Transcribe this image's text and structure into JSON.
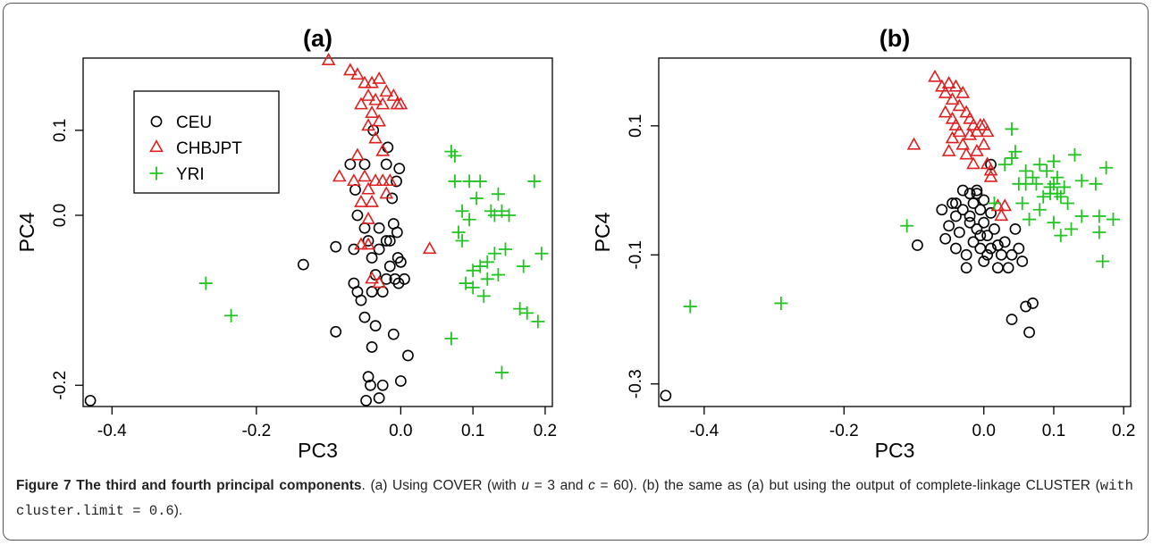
{
  "chart_data": [
    {
      "type": "scatter",
      "title": "(a)",
      "xlabel": "PC3",
      "ylabel": "PC4",
      "xlim": [
        -0.44,
        0.21
      ],
      "ylim": [
        -0.225,
        0.185
      ],
      "xticks": [
        -0.4,
        -0.2,
        0.0,
        0.1,
        0.2
      ],
      "xtick_labels": [
        "-0.4",
        "-0.2",
        "0.0",
        "0.1",
        "0.2"
      ],
      "yticks": [
        -0.2,
        0.0,
        0.1
      ],
      "ytick_labels": [
        "-0.2",
        "0.0",
        "0.1"
      ],
      "legend": {
        "position": "top-left",
        "entries": [
          {
            "label": "CEU",
            "marker": "circle",
            "color": "#000000"
          },
          {
            "label": "CHBJPT",
            "marker": "triangle",
            "color": "#DF2020"
          },
          {
            "label": "YRI",
            "marker": "plus",
            "color": "#22C322"
          }
        ]
      },
      "series": [
        {
          "name": "CEU",
          "marker": "circle",
          "color": "#000000",
          "points": [
            [
              -0.43,
              -0.218
            ],
            [
              -0.135,
              -0.058
            ],
            [
              -0.09,
              -0.037
            ],
            [
              -0.09,
              -0.137
            ],
            [
              -0.07,
              0.06
            ],
            [
              -0.065,
              -0.08
            ],
            [
              -0.063,
              0.03
            ],
            [
              -0.06,
              -0.09
            ],
            [
              -0.055,
              -0.1
            ],
            [
              -0.05,
              -0.12
            ],
            [
              -0.048,
              -0.218
            ],
            [
              -0.05,
              0.06
            ],
            [
              -0.045,
              -0.03
            ],
            [
              -0.045,
              -0.19
            ],
            [
              -0.042,
              -0.2
            ],
            [
              -0.04,
              -0.05
            ],
            [
              -0.04,
              -0.09
            ],
            [
              -0.038,
              0.1
            ],
            [
              -0.035,
              -0.07
            ],
            [
              -0.035,
              -0.13
            ],
            [
              -0.03,
              -0.04
            ],
            [
              -0.03,
              -0.215
            ],
            [
              -0.025,
              -0.2
            ],
            [
              -0.025,
              -0.09
            ],
            [
              -0.02,
              0.06
            ],
            [
              -0.02,
              -0.03
            ],
            [
              -0.018,
              0.08
            ],
            [
              -0.015,
              -0.06
            ],
            [
              -0.012,
              0.02
            ],
            [
              -0.01,
              -0.01
            ],
            [
              -0.01,
              -0.14
            ],
            [
              -0.008,
              -0.075
            ],
            [
              -0.006,
              0.04
            ],
            [
              -0.005,
              -0.02
            ],
            [
              -0.004,
              -0.05
            ],
            [
              -0.003,
              -0.08
            ],
            [
              -0.002,
              0.055
            ],
            [
              0.0,
              -0.055
            ],
            [
              0.0,
              -0.195
            ],
            [
              0.005,
              -0.075
            ],
            [
              0.01,
              -0.165
            ],
            [
              -0.06,
              0.0
            ],
            [
              -0.03,
              -0.015
            ],
            [
              -0.02,
              -0.075
            ],
            [
              -0.015,
              -0.03
            ],
            [
              -0.05,
              -0.015
            ],
            [
              -0.065,
              -0.04
            ],
            [
              -0.04,
              -0.155
            ]
          ]
        },
        {
          "name": "CHBJPT",
          "marker": "triangle",
          "color": "#DF2020",
          "points": [
            [
              -0.1,
              0.182
            ],
            [
              -0.06,
              0.165
            ],
            [
              -0.05,
              0.155
            ],
            [
              -0.04,
              0.155
            ],
            [
              -0.03,
              0.16
            ],
            [
              -0.045,
              0.14
            ],
            [
              -0.02,
              0.145
            ],
            [
              -0.01,
              0.14
            ],
            [
              -0.035,
              0.135
            ],
            [
              -0.025,
              0.13
            ],
            [
              -0.055,
              0.13
            ],
            [
              -0.04,
              0.12
            ],
            [
              -0.005,
              0.13
            ],
            [
              0.0,
              0.13
            ],
            [
              -0.045,
              0.105
            ],
            [
              -0.03,
              0.11
            ],
            [
              -0.025,
              0.075
            ],
            [
              -0.05,
              0.045
            ],
            [
              -0.085,
              0.045
            ],
            [
              -0.065,
              0.04
            ],
            [
              -0.045,
              0.03
            ],
            [
              -0.035,
              0.04
            ],
            [
              -0.025,
              0.04
            ],
            [
              -0.015,
              0.04
            ],
            [
              -0.055,
              0.015
            ],
            [
              -0.04,
              0.015
            ],
            [
              -0.045,
              -0.005
            ],
            [
              -0.055,
              -0.035
            ],
            [
              -0.045,
              -0.035
            ],
            [
              -0.04,
              -0.075
            ],
            [
              -0.03,
              -0.08
            ],
            [
              0.04,
              -0.04
            ],
            [
              -0.07,
              0.17
            ],
            [
              -0.035,
              0.09
            ],
            [
              -0.06,
              0.07
            ],
            [
              -0.02,
              0.025
            ]
          ]
        },
        {
          "name": "YRI",
          "marker": "plus",
          "color": "#22C322",
          "points": [
            [
              -0.27,
              -0.08
            ],
            [
              -0.235,
              -0.118
            ],
            [
              0.07,
              -0.145
            ],
            [
              0.07,
              0.075
            ],
            [
              0.075,
              0.07
            ],
            [
              0.075,
              0.04
            ],
            [
              0.08,
              -0.02
            ],
            [
              0.085,
              -0.03
            ],
            [
              0.085,
              0.005
            ],
            [
              0.09,
              -0.08
            ],
            [
              0.095,
              0.04
            ],
            [
              0.1,
              -0.065
            ],
            [
              0.1,
              -0.085
            ],
            [
              0.105,
              0.02
            ],
            [
              0.11,
              -0.06
            ],
            [
              0.11,
              0.04
            ],
            [
              0.115,
              -0.095
            ],
            [
              0.12,
              -0.055
            ],
            [
              0.12,
              -0.075
            ],
            [
              0.125,
              0.005
            ],
            [
              0.13,
              0.0
            ],
            [
              0.13,
              -0.045
            ],
            [
              0.135,
              0.025
            ],
            [
              0.14,
              0.005
            ],
            [
              0.14,
              -0.185
            ],
            [
              0.145,
              -0.04
            ],
            [
              0.165,
              -0.11
            ],
            [
              0.17,
              -0.06
            ],
            [
              0.175,
              -0.115
            ],
            [
              0.185,
              0.04
            ],
            [
              0.19,
              -0.125
            ],
            [
              0.195,
              -0.045
            ],
            [
              0.095,
              -0.005
            ],
            [
              0.135,
              -0.07
            ],
            [
              0.15,
              0.0
            ]
          ]
        }
      ]
    },
    {
      "type": "scatter",
      "title": "(b)",
      "xlabel": "PC3",
      "ylabel": "PC4",
      "xlim": [
        -0.465,
        0.21
      ],
      "ylim": [
        -0.335,
        0.205
      ],
      "xticks": [
        -0.4,
        -0.2,
        0.0,
        0.1,
        0.2
      ],
      "xtick_labels": [
        "-0.4",
        "-0.2",
        "0.0",
        "0.1",
        "0.2"
      ],
      "yticks": [
        -0.3,
        -0.1,
        0.1
      ],
      "ytick_labels": [
        "-0.3",
        "-0.1",
        "0.1"
      ],
      "series": [
        {
          "name": "CEU",
          "marker": "circle",
          "color": "#000000",
          "points": [
            [
              -0.455,
              -0.318
            ],
            [
              -0.095,
              -0.085
            ],
            [
              -0.06,
              -0.03
            ],
            [
              -0.055,
              -0.075
            ],
            [
              -0.05,
              -0.055
            ],
            [
              -0.045,
              -0.02
            ],
            [
              -0.04,
              -0.04
            ],
            [
              -0.04,
              -0.09
            ],
            [
              -0.035,
              -0.065
            ],
            [
              -0.03,
              0.0
            ],
            [
              -0.03,
              -0.03
            ],
            [
              -0.025,
              -0.1
            ],
            [
              -0.025,
              -0.12
            ],
            [
              -0.02,
              -0.005
            ],
            [
              -0.02,
              -0.05
            ],
            [
              -0.015,
              -0.08
            ],
            [
              -0.015,
              -0.02
            ],
            [
              -0.01,
              -0.005
            ],
            [
              -0.01,
              0.0
            ],
            [
              -0.01,
              -0.06
            ],
            [
              -0.005,
              -0.03
            ],
            [
              -0.005,
              -0.09
            ],
            [
              0.0,
              -0.015
            ],
            [
              0.0,
              -0.05
            ],
            [
              0.005,
              -0.07
            ],
            [
              0.005,
              -0.1
            ],
            [
              0.01,
              -0.035
            ],
            [
              0.01,
              0.04
            ],
            [
              0.015,
              -0.06
            ],
            [
              0.02,
              -0.085
            ],
            [
              0.025,
              -0.1
            ],
            [
              0.03,
              -0.08
            ],
            [
              0.035,
              -0.12
            ],
            [
              0.04,
              -0.2
            ],
            [
              0.045,
              -0.06
            ],
            [
              0.05,
              -0.09
            ],
            [
              0.055,
              -0.11
            ],
            [
              0.06,
              -0.18
            ],
            [
              0.065,
              -0.22
            ],
            [
              0.07,
              -0.175
            ],
            [
              -0.02,
              -0.04
            ],
            [
              0.0,
              -0.11
            ],
            [
              0.02,
              -0.12
            ],
            [
              -0.04,
              -0.02
            ],
            [
              -0.005,
              -0.07
            ],
            [
              0.01,
              -0.09
            ],
            [
              0.04,
              -0.1
            ]
          ]
        },
        {
          "name": "CHBJPT",
          "marker": "triangle",
          "color": "#DF2020",
          "points": [
            [
              -0.1,
              0.07
            ],
            [
              -0.07,
              0.175
            ],
            [
              -0.06,
              0.16
            ],
            [
              -0.055,
              0.15
            ],
            [
              -0.05,
              0.165
            ],
            [
              -0.045,
              0.14
            ],
            [
              -0.04,
              0.16
            ],
            [
              -0.035,
              0.13
            ],
            [
              -0.03,
              0.15
            ],
            [
              -0.025,
              0.12
            ],
            [
              -0.02,
              0.11
            ],
            [
              -0.015,
              0.1
            ],
            [
              -0.01,
              0.09
            ],
            [
              -0.005,
              0.1
            ],
            [
              0.0,
              0.1
            ],
            [
              0.005,
              0.09
            ],
            [
              -0.04,
              0.1
            ],
            [
              -0.045,
              0.08
            ],
            [
              -0.05,
              0.06
            ],
            [
              -0.055,
              0.12
            ],
            [
              -0.035,
              0.09
            ],
            [
              -0.03,
              0.07
            ],
            [
              -0.02,
              0.085
            ],
            [
              -0.01,
              0.06
            ],
            [
              0.0,
              0.07
            ],
            [
              0.005,
              0.04
            ],
            [
              0.01,
              0.03
            ],
            [
              -0.015,
              0.04
            ],
            [
              0.02,
              -0.025
            ],
            [
              0.025,
              -0.04
            ],
            [
              0.03,
              -0.025
            ],
            [
              -0.045,
              0.11
            ],
            [
              -0.025,
              0.055
            ],
            [
              0.01,
              0.02
            ]
          ]
        },
        {
          "name": "YRI",
          "marker": "plus",
          "color": "#22C322",
          "points": [
            [
              -0.42,
              -0.18
            ],
            [
              -0.29,
              -0.175
            ],
            [
              -0.11,
              -0.055
            ],
            [
              0.03,
              0.04
            ],
            [
              0.04,
              0.05
            ],
            [
              0.04,
              0.095
            ],
            [
              0.045,
              0.06
            ],
            [
              0.05,
              0.01
            ],
            [
              0.055,
              -0.02
            ],
            [
              0.06,
              0.03
            ],
            [
              0.065,
              -0.045
            ],
            [
              0.07,
              0.02
            ],
            [
              0.075,
              0.01
            ],
            [
              0.08,
              0.04
            ],
            [
              0.08,
              -0.03
            ],
            [
              0.085,
              -0.01
            ],
            [
              0.09,
              0.03
            ],
            [
              0.095,
              0.005
            ],
            [
              0.1,
              -0.05
            ],
            [
              0.1,
              0.045
            ],
            [
              0.105,
              0.02
            ],
            [
              0.11,
              -0.01
            ],
            [
              0.11,
              -0.07
            ],
            [
              0.115,
              0.005
            ],
            [
              0.12,
              -0.02
            ],
            [
              0.125,
              -0.06
            ],
            [
              0.13,
              0.055
            ],
            [
              0.14,
              0.015
            ],
            [
              0.14,
              -0.04
            ],
            [
              0.16,
              0.01
            ],
            [
              0.165,
              -0.04
            ],
            [
              0.165,
              -0.065
            ],
            [
              0.17,
              -0.11
            ],
            [
              0.175,
              0.035
            ],
            [
              0.185,
              -0.045
            ],
            [
              0.095,
              -0.005
            ],
            [
              0.1,
              0.01
            ],
            [
              0.105,
              -0.005
            ],
            [
              0.06,
              0.01
            ],
            [
              0.015,
              -0.02
            ]
          ]
        }
      ]
    }
  ],
  "caption": {
    "label": "Figure 7 The third and fourth principal components",
    "part1": ". (a) Using COVER (with ",
    "u_var": "u",
    "part2": " = 3 and ",
    "c_var": "c",
    "part3": " = 60). (b) the same as (a) but using the output of complete-linkage CLUSTER (",
    "code": "with cluster.limit = 0.6",
    "part4": ")."
  }
}
